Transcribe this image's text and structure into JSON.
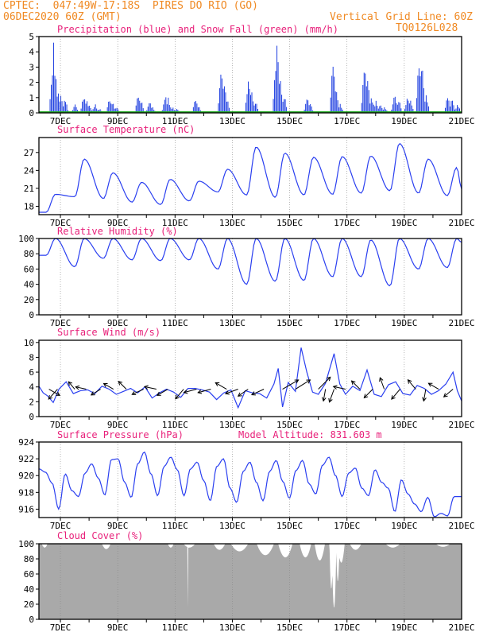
{
  "header": {
    "line1_left": "CPTEC:  047:49W-17:18S  PIRES DO RIO (GO)",
    "line2_left": "06DEC2020 60Z (GMT)",
    "line1_right": "Vertical Grid Line: 60Z",
    "line2_right": "TQ0126L028"
  },
  "colors": {
    "header": "#f08a24",
    "panel_title": "#e8207a",
    "precip": "#1f3fe0",
    "snow": "#22aa22",
    "line": "#2a3ff0",
    "wind_arrow": "#000000",
    "cloud": "#a9a9a9",
    "grid": "#888888"
  },
  "x_axis": {
    "start_day": 6.25,
    "end_day": 21.0,
    "tick_labels": [
      "7DEC",
      "9DEC",
      "11DEC",
      "13DEC",
      "15DEC",
      "17DEC",
      "19DEC",
      "21DEC"
    ],
    "tick_days": [
      7,
      9,
      11,
      13,
      15,
      17,
      19,
      21
    ]
  },
  "chart_data": [
    {
      "id": "precip",
      "type": "bar",
      "title": "Precipitation (blue) and Snow Fall (green) (mm/h)",
      "ylim": [
        0,
        5
      ],
      "yticks": [
        0,
        1,
        2,
        3,
        4,
        5
      ],
      "grid": "vertical dotted",
      "series": [
        {
          "name": "Precipitation",
          "bursts": [
            [
              6.7,
              2.5
            ],
            [
              6.75,
              4.6
            ],
            [
              6.8,
              3.0
            ],
            [
              6.9,
              1.5
            ],
            [
              7.0,
              1.2
            ],
            [
              7.15,
              1.0
            ],
            [
              7.5,
              0.6
            ],
            [
              7.8,
              1.2
            ],
            [
              7.9,
              0.9
            ],
            [
              8.0,
              0.5
            ],
            [
              8.2,
              0.6
            ],
            [
              8.35,
              0.3
            ],
            [
              8.7,
              1.0
            ],
            [
              8.8,
              0.8
            ],
            [
              8.95,
              0.4
            ],
            [
              9.7,
              1.3
            ],
            [
              9.8,
              0.9
            ],
            [
              10.1,
              0.8
            ],
            [
              10.2,
              0.4
            ],
            [
              10.65,
              1.2
            ],
            [
              10.75,
              1.0
            ],
            [
              10.9,
              0.4
            ],
            [
              11.05,
              0.3
            ],
            [
              11.7,
              1.0
            ],
            [
              11.8,
              0.5
            ],
            [
              12.6,
              3.1
            ],
            [
              12.7,
              2.2
            ],
            [
              12.8,
              1.0
            ],
            [
              13.55,
              2.3
            ],
            [
              13.65,
              1.6
            ],
            [
              13.8,
              0.8
            ],
            [
              14.5,
              3.2
            ],
            [
              14.55,
              4.9
            ],
            [
              14.65,
              2.5
            ],
            [
              14.8,
              1.2
            ],
            [
              15.6,
              1.1
            ],
            [
              15.7,
              0.7
            ],
            [
              16.5,
              3.6
            ],
            [
              16.6,
              1.8
            ],
            [
              16.75,
              0.6
            ],
            [
              17.6,
              3.4
            ],
            [
              17.7,
              2.5
            ],
            [
              17.85,
              1.1
            ],
            [
              18.0,
              0.8
            ],
            [
              18.15,
              0.6
            ],
            [
              18.3,
              0.4
            ],
            [
              18.65,
              1.3
            ],
            [
              18.8,
              0.9
            ],
            [
              19.1,
              1.1
            ],
            [
              19.2,
              0.9
            ],
            [
              19.5,
              3.6
            ],
            [
              19.6,
              3.6
            ],
            [
              19.75,
              1.2
            ],
            [
              20.5,
              1.2
            ],
            [
              20.65,
              1.0
            ],
            [
              20.85,
              0.6
            ]
          ]
        },
        {
          "name": "Snow Fall",
          "values": [
            0
          ]
        }
      ]
    },
    {
      "id": "temp",
      "type": "line",
      "title": "Surface Temperature (nC)",
      "ylim": [
        16.6,
        29.5
      ],
      "yticks": [
        18,
        21,
        24,
        27
      ],
      "daily_min": [
        17.0,
        19.6,
        19.3,
        18.7,
        18.3,
        18.9,
        20.4,
        19.9,
        19.5,
        19.9,
        20.0,
        20.2,
        20.6,
        20.2,
        19.8
      ],
      "daily_max": [
        20.0,
        25.9,
        23.6,
        22.0,
        22.5,
        22.2,
        24.2,
        27.9,
        26.9,
        26.2,
        26.3,
        26.4,
        28.5,
        25.9,
        24.5
      ],
      "end_value": 20.9
    },
    {
      "id": "rh",
      "type": "line",
      "title": "Relative Humidity (%)",
      "ylim": [
        0,
        100
      ],
      "yticks": [
        0,
        20,
        40,
        60,
        80,
        100
      ],
      "daily_min": [
        78,
        63,
        74,
        72,
        71,
        72,
        60,
        40,
        44,
        45,
        50,
        50,
        38,
        60,
        62
      ],
      "daily_max": [
        100,
        100,
        100,
        100,
        100,
        100,
        100,
        100,
        100,
        100,
        100,
        98,
        100,
        100,
        100
      ],
      "end_value": 95
    },
    {
      "id": "wind",
      "type": "line",
      "title": "Surface Wind (m/s)",
      "ylim": [
        0,
        10.3
      ],
      "yticks": [
        0,
        2,
        4,
        6,
        8,
        10
      ],
      "speeds": [
        [
          6.25,
          4.1
        ],
        [
          6.4,
          3.2
        ],
        [
          6.55,
          2.8
        ],
        [
          6.75,
          1.9
        ],
        [
          6.95,
          3.7
        ],
        [
          7.2,
          4.7
        ],
        [
          7.45,
          3.1
        ],
        [
          7.7,
          3.5
        ],
        [
          7.95,
          3.6
        ],
        [
          8.2,
          3.1
        ],
        [
          8.45,
          4.1
        ],
        [
          8.7,
          3.7
        ],
        [
          8.95,
          3.0
        ],
        [
          9.2,
          3.4
        ],
        [
          9.45,
          3.8
        ],
        [
          9.7,
          3.2
        ],
        [
          9.95,
          4.0
        ],
        [
          10.2,
          2.5
        ],
        [
          10.45,
          3.2
        ],
        [
          10.7,
          3.7
        ],
        [
          10.95,
          3.3
        ],
        [
          11.2,
          2.6
        ],
        [
          11.45,
          3.8
        ],
        [
          11.7,
          3.8
        ],
        [
          11.95,
          3.6
        ],
        [
          12.2,
          3.3
        ],
        [
          12.45,
          2.3
        ],
        [
          12.7,
          3.2
        ],
        [
          12.95,
          3.6
        ],
        [
          13.2,
          1.2
        ],
        [
          13.45,
          3.5
        ],
        [
          13.7,
          3.2
        ],
        [
          13.95,
          3.1
        ],
        [
          14.2,
          2.5
        ],
        [
          14.45,
          4.4
        ],
        [
          14.6,
          6.5
        ],
        [
          14.75,
          1.3
        ],
        [
          14.95,
          4.6
        ],
        [
          15.2,
          3.4
        ],
        [
          15.4,
          9.3
        ],
        [
          15.6,
          6.0
        ],
        [
          15.8,
          3.3
        ],
        [
          16.0,
          3.0
        ],
        [
          16.25,
          4.5
        ],
        [
          16.55,
          8.5
        ],
        [
          16.75,
          4.4
        ],
        [
          16.95,
          3.0
        ],
        [
          17.2,
          4.1
        ],
        [
          17.45,
          3.5
        ],
        [
          17.7,
          6.3
        ],
        [
          17.95,
          3.0
        ],
        [
          18.2,
          2.7
        ],
        [
          18.45,
          4.3
        ],
        [
          18.7,
          4.7
        ],
        [
          18.95,
          3.1
        ],
        [
          19.2,
          2.9
        ],
        [
          19.45,
          4.2
        ],
        [
          19.7,
          3.8
        ],
        [
          19.95,
          3.0
        ],
        [
          20.2,
          3.5
        ],
        [
          20.45,
          4.4
        ],
        [
          20.7,
          6.0
        ],
        [
          20.85,
          3.5
        ],
        [
          21.0,
          2.1
        ]
      ],
      "arrows": [
        [
          6.6,
          4.0,
          -30
        ],
        [
          6.9,
          4.4,
          -132
        ],
        [
          7.5,
          2.8,
          130
        ],
        [
          7.9,
          3.3,
          168
        ],
        [
          8.4,
          3.4,
          -148
        ],
        [
          8.85,
          3.5,
          150
        ],
        [
          9.3,
          3.4,
          135
        ],
        [
          9.9,
          4.1,
          -155
        ],
        [
          10.35,
          3.9,
          168
        ],
        [
          10.75,
          4.0,
          -150
        ],
        [
          11.3,
          4.1,
          -130
        ],
        [
          11.75,
          4.3,
          -165
        ],
        [
          12.25,
          4.4,
          -165
        ],
        [
          12.8,
          4.2,
          150
        ],
        [
          13.2,
          4.4,
          -160
        ],
        [
          13.55,
          3.9,
          -145
        ],
        [
          14.1,
          4.4,
          -155
        ],
        [
          14.75,
          6.6,
          30
        ],
        [
          15.2,
          6.2,
          32
        ],
        [
          16.0,
          6.0,
          45
        ],
        [
          16.25,
          3.8,
          -100
        ],
        [
          16.55,
          4.6,
          -110
        ],
        [
          16.95,
          4.0,
          168
        ],
        [
          17.45,
          3.7,
          135
        ],
        [
          17.9,
          3.9,
          -135
        ],
        [
          18.3,
          3.9,
          110
        ],
        [
          18.85,
          4.3,
          -130
        ],
        [
          19.4,
          3.9,
          130
        ],
        [
          19.75,
          3.8,
          -100
        ],
        [
          20.2,
          3.7,
          150
        ],
        [
          20.7,
          3.8,
          -140
        ]
      ]
    },
    {
      "id": "pres",
      "type": "line",
      "title": "Surface Pressure (hPa)",
      "annotation": "Model Altitude: 831.603 m",
      "ylim": [
        915.0,
        924.0
      ],
      "yticks": [
        916,
        918,
        920,
        922,
        924
      ],
      "values": [
        920.8,
        920.4,
        919.1,
        916.0,
        920.2,
        918.2,
        917.5,
        920.3,
        921.4,
        919.7,
        917.7,
        921.9,
        922.0,
        919.2,
        917.4,
        921.4,
        922.8,
        920.2,
        917.6,
        921.1,
        922.2,
        920.7,
        917.6,
        920.8,
        921.6,
        919.4,
        917.0,
        921.1,
        922.0,
        918.5,
        916.8,
        920.5,
        921.6,
        919.2,
        917.0,
        920.5,
        921.8,
        919.3,
        917.3,
        920.6,
        921.8,
        919.0,
        917.8,
        921.2,
        922.2,
        920.0,
        917.5,
        920.3,
        920.9,
        918.5,
        917.6,
        920.7,
        919.2,
        918.5,
        915.7,
        919.5,
        917.8,
        916.6,
        915.7,
        917.4,
        915.1,
        915.5,
        915.2,
        917.5
      ],
      "start_day": 6.25,
      "step_days": 0.23
    },
    {
      "id": "cloud",
      "type": "area",
      "title": "Cloud Cover (%)",
      "ylim": [
        0,
        100
      ],
      "yticks": [
        0,
        20,
        40,
        60,
        80,
        100
      ],
      "baseline": 100,
      "dips": [
        [
          6.45,
          0.1,
          95
        ],
        [
          8.6,
          0.15,
          93
        ],
        [
          10.85,
          0.1,
          95
        ],
        [
          11.45,
          0.012,
          0
        ],
        [
          11.5,
          0.2,
          95
        ],
        [
          12.55,
          0.2,
          92
        ],
        [
          13.25,
          0.3,
          90
        ],
        [
          14.15,
          0.3,
          85
        ],
        [
          14.85,
          0.25,
          82
        ],
        [
          15.55,
          0.2,
          82
        ],
        [
          16.05,
          0.18,
          78
        ],
        [
          16.45,
          0.06,
          40
        ],
        [
          16.55,
          0.08,
          15
        ],
        [
          16.68,
          0.06,
          50
        ],
        [
          16.8,
          0.12,
          75
        ],
        [
          17.3,
          0.2,
          92
        ],
        [
          18.6,
          0.25,
          95
        ],
        [
          20.35,
          0.25,
          96
        ]
      ]
    }
  ]
}
